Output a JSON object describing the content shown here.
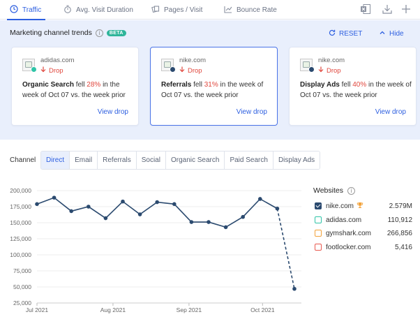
{
  "metric_tabs": [
    {
      "label": "Traffic",
      "icon": "clock-icon",
      "active": true
    },
    {
      "label": "Avg. Visit Duration",
      "icon": "stopwatch-icon",
      "active": false
    },
    {
      "label": "Pages / Visit",
      "icon": "pages-icon",
      "active": false
    },
    {
      "label": "Bounce Rate",
      "icon": "bounce-icon",
      "active": false
    }
  ],
  "toolbar_icons": [
    "excel-export-icon",
    "download-icon",
    "add-icon"
  ],
  "trends": {
    "title": "Marketing channel trends",
    "badge": "BETA",
    "reset_label": "RESET",
    "hide_label": "Hide",
    "cards": [
      {
        "domain": "adidas.com",
        "dot_color": "#2fc4a7",
        "drop_label": "Drop",
        "channel": "Organic Search",
        "fell": "fell",
        "percent": "28%",
        "rest": "in the week of Oct 07 vs. the week prior",
        "view_label": "View drop",
        "selected": false
      },
      {
        "domain": "nike.com",
        "dot_color": "#2b4a6f",
        "drop_label": "Drop",
        "channel": "Referrals",
        "fell": "fell",
        "percent": "31%",
        "rest": "in the week of Oct 07 vs. the week prior",
        "view_label": "View drop",
        "selected": true
      },
      {
        "domain": "nike.com",
        "dot_color": "#2b4a6f",
        "drop_label": "Drop",
        "channel": "Display Ads",
        "fell": "fell",
        "percent": "40%",
        "rest": "in the week of Oct 07 vs. the week prior",
        "view_label": "View drop",
        "selected": false
      }
    ]
  },
  "channel": {
    "label": "Channel",
    "tabs": [
      "Direct",
      "Email",
      "Referrals",
      "Social",
      "Organic Search",
      "Paid Search",
      "Display Ads"
    ],
    "active": "Direct"
  },
  "websites": {
    "title": "Websites",
    "items": [
      {
        "name": "nike.com",
        "value": "2.579M",
        "color": "#2b4a6f",
        "checked": true,
        "trophy": true
      },
      {
        "name": "adidas.com",
        "value": "110,912",
        "color": "#2fc4a7",
        "checked": false,
        "trophy": false
      },
      {
        "name": "gymshark.com",
        "value": "266,856",
        "color": "#f2a23a",
        "checked": false,
        "trophy": false
      },
      {
        "name": "footlocker.com",
        "value": "5,416",
        "color": "#e8594f",
        "checked": false,
        "trophy": false
      }
    ]
  },
  "colors": {
    "accent": "#2d5fe0",
    "series": "#2b4a6f",
    "drop": "#e0463c"
  },
  "chart_data": {
    "type": "line",
    "x": [
      "2021-07-01",
      "2021-07-08",
      "2021-07-15",
      "2021-07-22",
      "2021-07-29",
      "2021-08-05",
      "2021-08-12",
      "2021-08-19",
      "2021-08-26",
      "2021-09-02",
      "2021-09-09",
      "2021-09-16",
      "2021-09-23",
      "2021-09-30",
      "2021-10-07",
      "2021-10-14"
    ],
    "x_tick_labels": [
      "Jul 2021",
      "Aug 2021",
      "Sep 2021",
      "Oct 2021"
    ],
    "x_tick_dates": [
      "2021-07-01",
      "2021-08-01",
      "2021-09-01",
      "2021-10-01"
    ],
    "series": [
      {
        "name": "nike.com",
        "values": [
          179000,
          189000,
          168000,
          175000,
          157000,
          183000,
          163000,
          182000,
          179000,
          151000,
          151000,
          143000,
          159000,
          187000,
          172000,
          47000
        ],
        "dashed_from_index": 14
      }
    ],
    "y_ticks": [
      25000,
      50000,
      75000,
      100000,
      125000,
      150000,
      175000,
      200000
    ],
    "y_tick_labels": [
      "25,000",
      "50,000",
      "75,000",
      "100,000",
      "125,000",
      "150,000",
      "175,000",
      "200,000"
    ],
    "ylim": [
      25000,
      200000
    ],
    "grid": true,
    "title": "",
    "xlabel": "",
    "ylabel": ""
  }
}
